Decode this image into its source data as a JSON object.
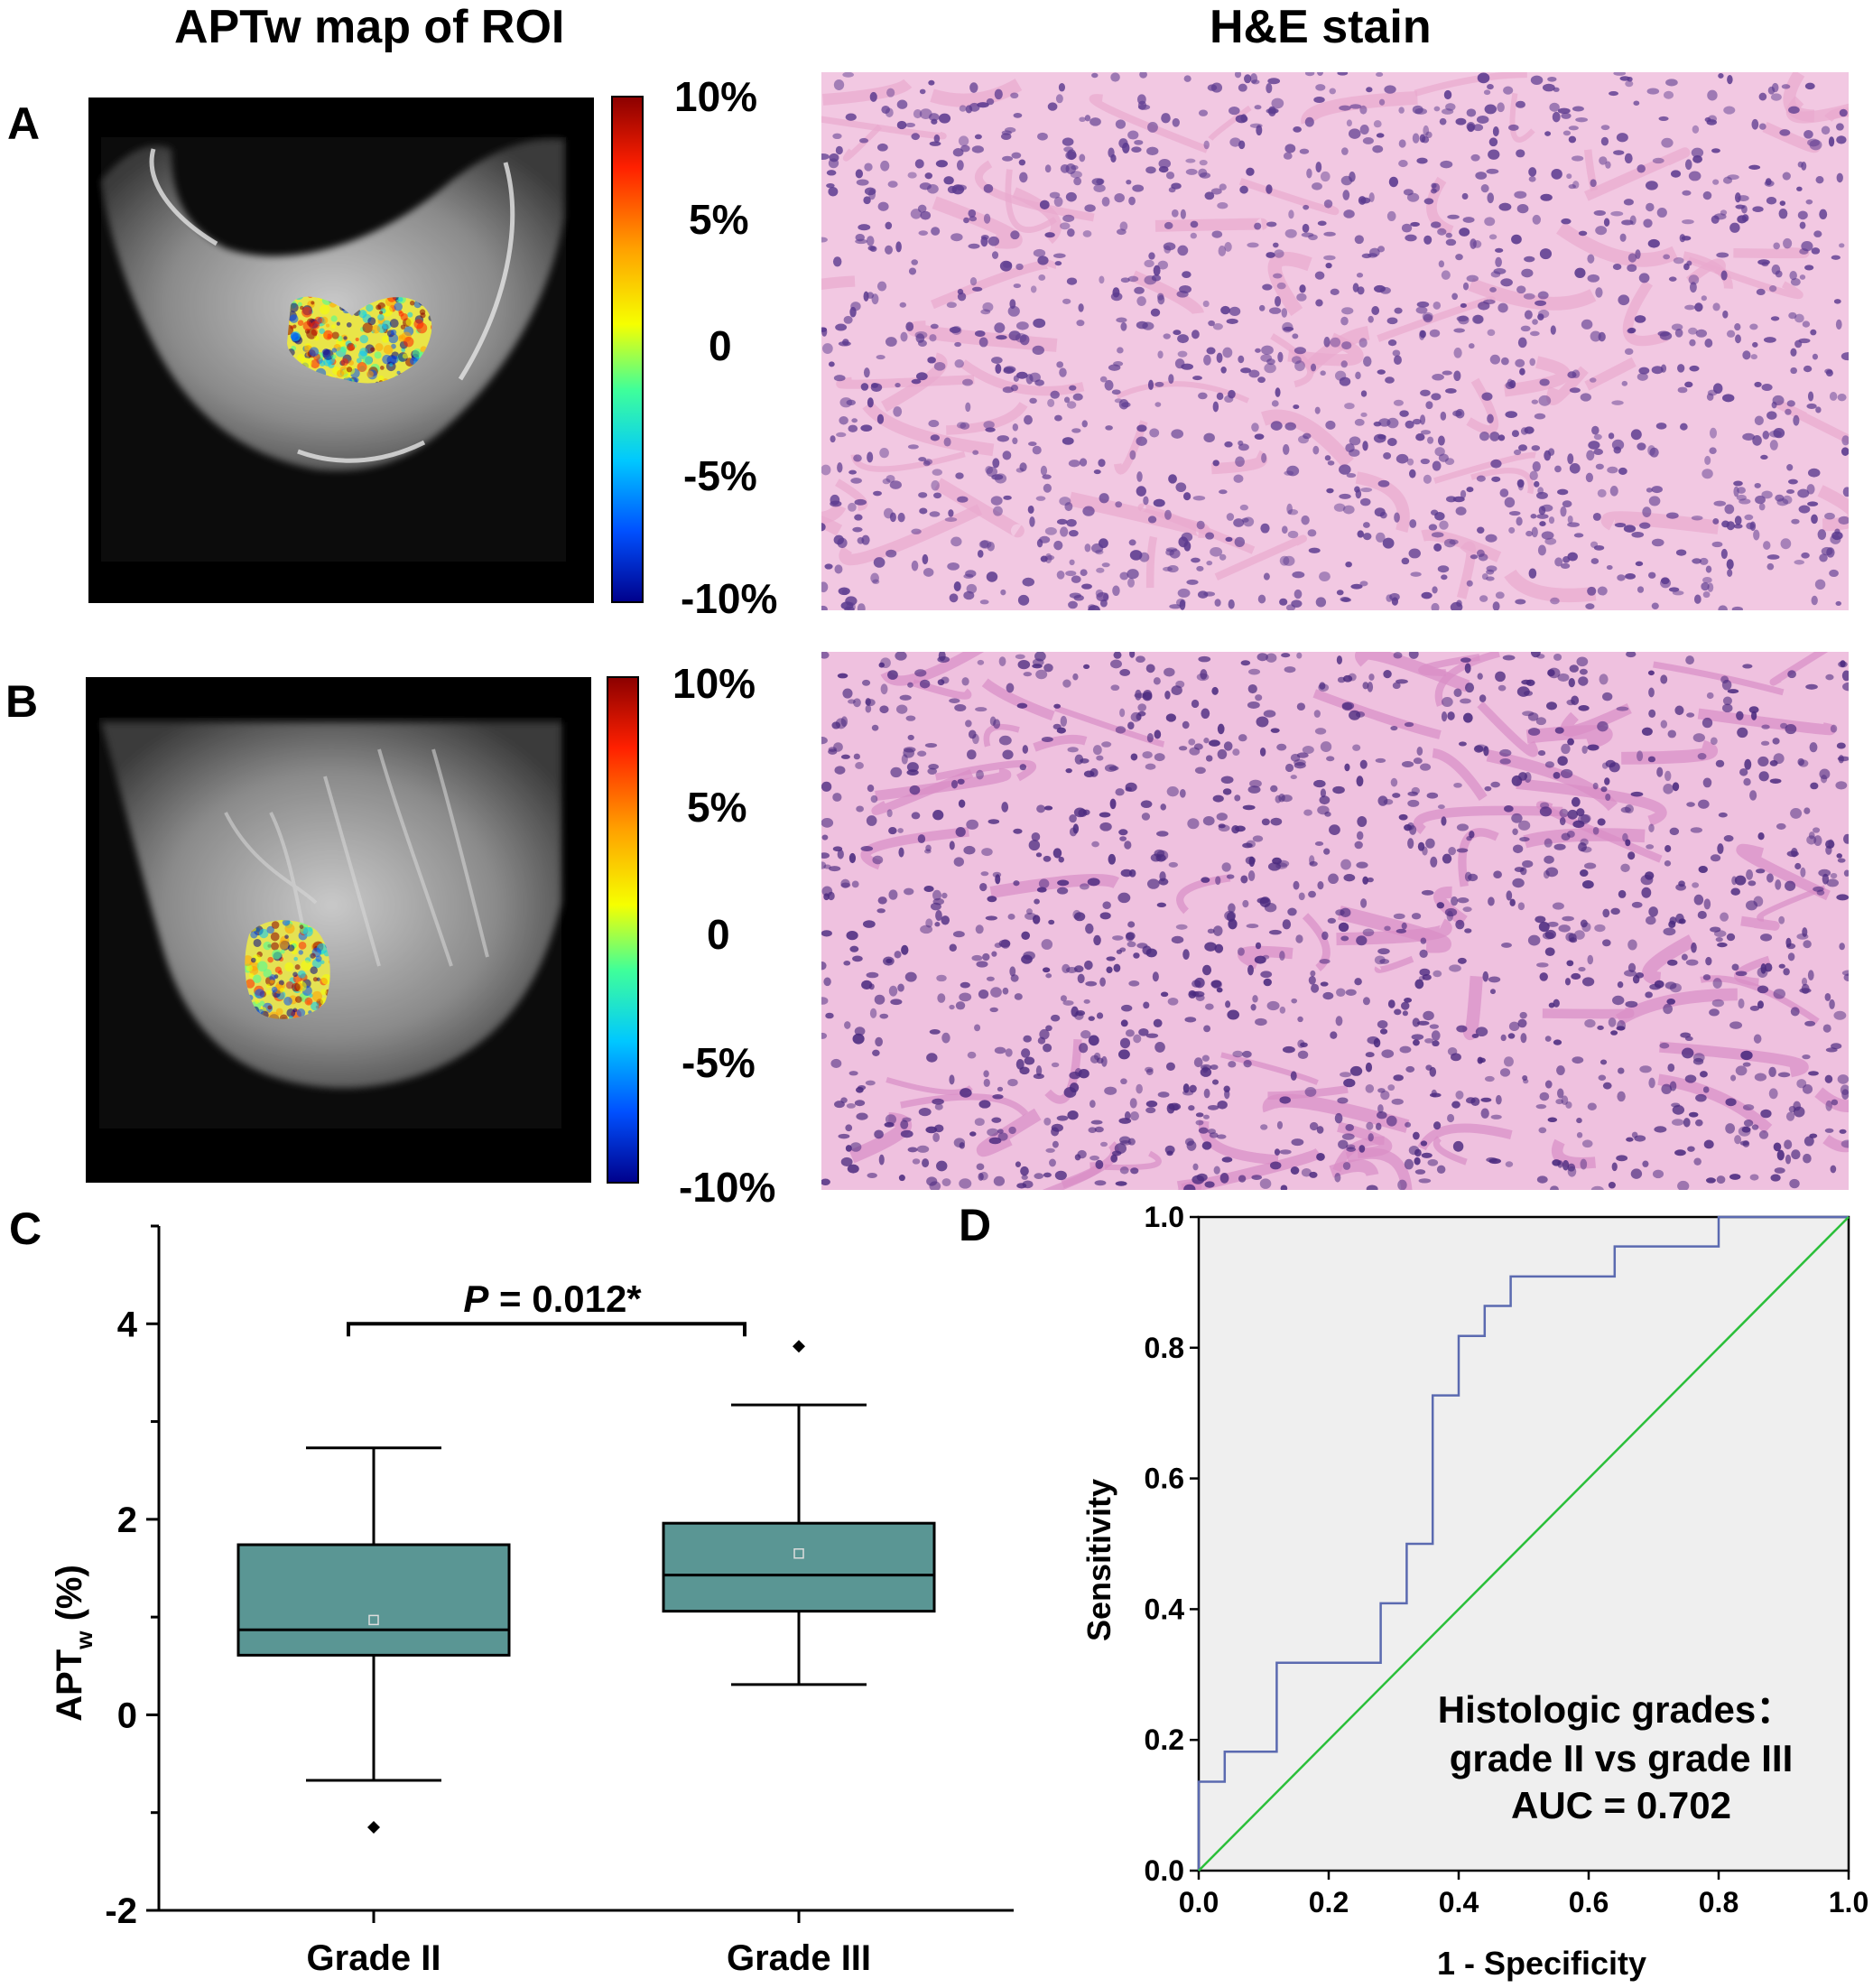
{
  "titles": {
    "left": "APTw map of ROI",
    "right": "H&E stain"
  },
  "panel_labels": {
    "a": "A",
    "b": "B",
    "c": "C",
    "d": "D"
  },
  "colorbar": {
    "tick_labels": [
      "10%",
      "5%",
      "0",
      "-5%",
      "-10%"
    ],
    "colors": [
      "#8b0000",
      "#ff2000",
      "#ffa000",
      "#f6ff00",
      "#3fff9a",
      "#00c8ff",
      "#0050ff",
      "#00008b"
    ]
  },
  "panel_a": {
    "tissue_color": "#b0b0b0",
    "he_colors": {
      "stroma": "#e9a9cf",
      "nuclei": "#5b3a8f",
      "background": "#f2c8e2"
    }
  },
  "panel_b": {
    "tissue_color": "#b0b0b0",
    "he_colors": {
      "stroma": "#d98dc6",
      "nuclei": "#4b2a7f",
      "background": "#efc1df"
    }
  },
  "chart_data": [
    {
      "type": "box",
      "ylabel": "APT",
      "ylabel_sub": "w",
      "ylabel_suffix": " (%)",
      "ylim": [
        -2,
        5
      ],
      "yticks": [
        -2,
        0,
        2,
        4
      ],
      "yticklabels": [
        "-2",
        "0",
        "2",
        "4"
      ],
      "categories": [
        "Grade II",
        "Grade III"
      ],
      "box_color": "#5a9694",
      "boxes": [
        {
          "whisker_low": -0.67,
          "q1": 0.61,
          "median": 0.87,
          "mean": 0.97,
          "q3": 1.74,
          "whisker_high": 2.73,
          "outliers": [
            -1.15
          ]
        },
        {
          "whisker_low": 0.31,
          "q1": 1.06,
          "median": 1.43,
          "mean": 1.65,
          "q3": 1.96,
          "whisker_high": 3.17,
          "outliers": [
            3.77
          ]
        }
      ],
      "annotation": {
        "p_symbol": "P",
        "p_text": " = 0.012*",
        "bracket_y": 4.0
      }
    },
    {
      "type": "line",
      "xlabel": "1 - Specificity",
      "ylabel": "Sensitivity",
      "xlim": [
        0,
        1
      ],
      "ylim": [
        0,
        1
      ],
      "xticklabels": [
        "0.0",
        "0.2",
        "0.4",
        "0.6",
        "0.8",
        "1.0"
      ],
      "yticklabels": [
        "0.0",
        "0.2",
        "0.4",
        "0.6",
        "0.8",
        "1.0"
      ],
      "background": "#efefef",
      "series": [
        {
          "color": "#5b6ab0",
          "x": [
            0,
            0,
            0.04,
            0.04,
            0.12,
            0.12,
            0.28,
            0.28,
            0.32,
            0.32,
            0.36,
            0.36,
            0.4,
            0.4,
            0.44,
            0.44,
            0.48,
            0.48,
            0.64,
            0.64,
            0.8,
            0.8,
            1.0
          ],
          "y": [
            0,
            0.136,
            0.136,
            0.182,
            0.182,
            0.318,
            0.318,
            0.409,
            0.409,
            0.5,
            0.5,
            0.727,
            0.727,
            0.818,
            0.818,
            0.864,
            0.864,
            0.909,
            0.909,
            0.955,
            0.955,
            1.0,
            1.0
          ]
        },
        {
          "color": "#2bbf3a",
          "x": [
            0,
            1
          ],
          "y": [
            0,
            1
          ]
        }
      ],
      "annotation_lines": [
        "Histologic grades：",
        "grade II vs grade III",
        "AUC = 0.702"
      ]
    }
  ]
}
